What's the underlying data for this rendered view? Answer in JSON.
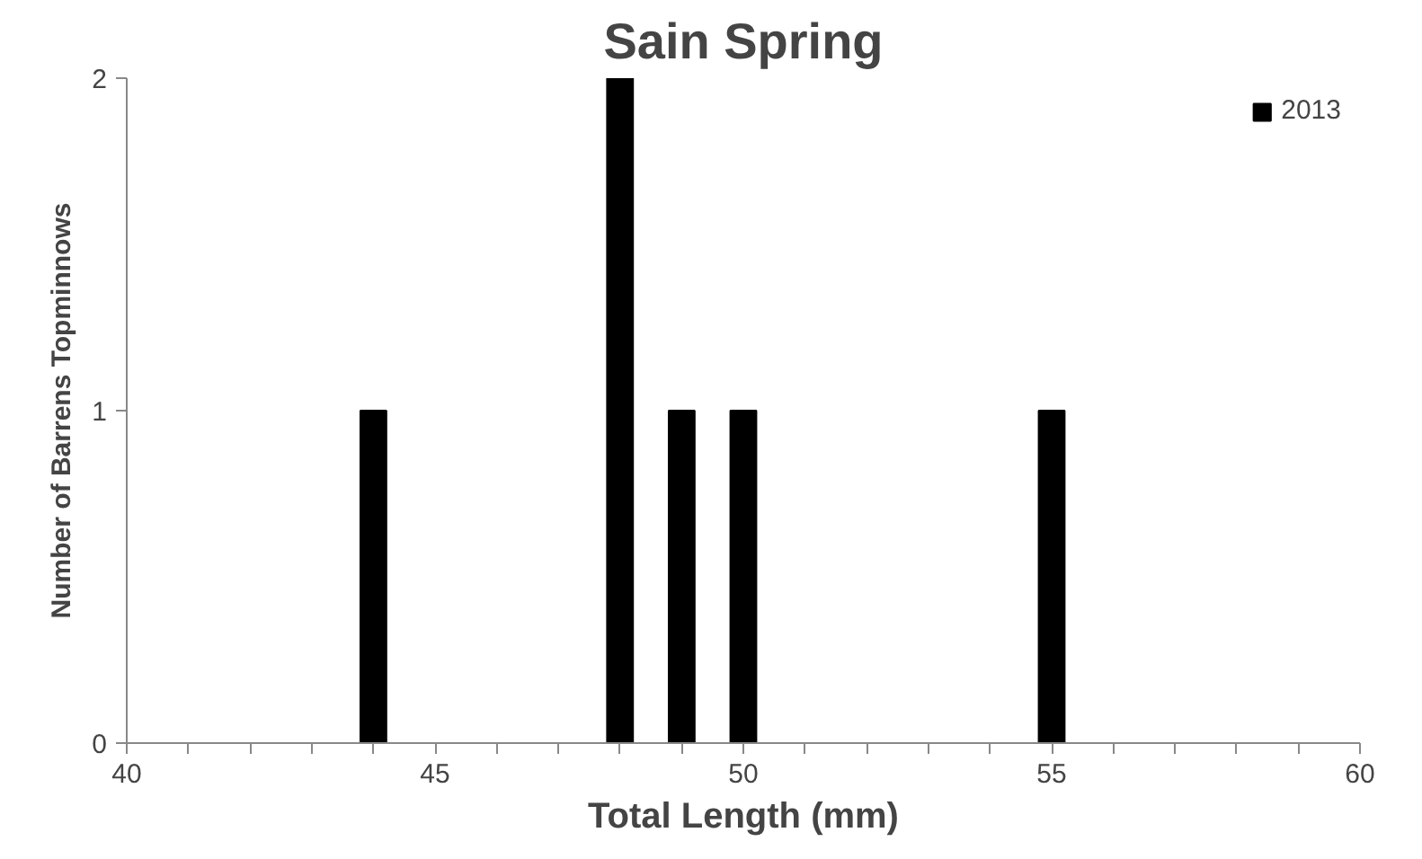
{
  "chart_data": {
    "type": "bar",
    "title": "Sain Spring",
    "xlabel": "Total Length (mm)",
    "ylabel": "Number of Barrens Topminnows",
    "x": [
      44,
      48,
      49,
      50,
      55
    ],
    "series": [
      {
        "name": "2013",
        "color": "#000000",
        "values": [
          1,
          2,
          1,
          1,
          1
        ]
      }
    ],
    "xlim": [
      40,
      60
    ],
    "xticks": [
      40,
      {
        "value": 41,
        "label": null
      },
      {
        "value": 42,
        "label": null
      },
      {
        "value": 43,
        "label": null
      },
      {
        "value": 44,
        "label": null
      },
      45,
      {
        "value": 46,
        "label": null
      },
      {
        "value": 47,
        "label": null
      },
      {
        "value": 48,
        "label": null
      },
      {
        "value": 49,
        "label": null
      },
      50,
      {
        "value": 51,
        "label": null
      },
      {
        "value": 52,
        "label": null
      },
      {
        "value": 53,
        "label": null
      },
      {
        "value": 54,
        "label": null
      },
      55,
      {
        "value": 56,
        "label": null
      },
      {
        "value": 57,
        "label": null
      },
      {
        "value": 58,
        "label": null
      },
      {
        "value": 59,
        "label": null
      },
      60
    ],
    "ylim": [
      0,
      2
    ],
    "yticks": [
      0,
      1,
      2
    ],
    "grid": false,
    "legend": "top right"
  }
}
